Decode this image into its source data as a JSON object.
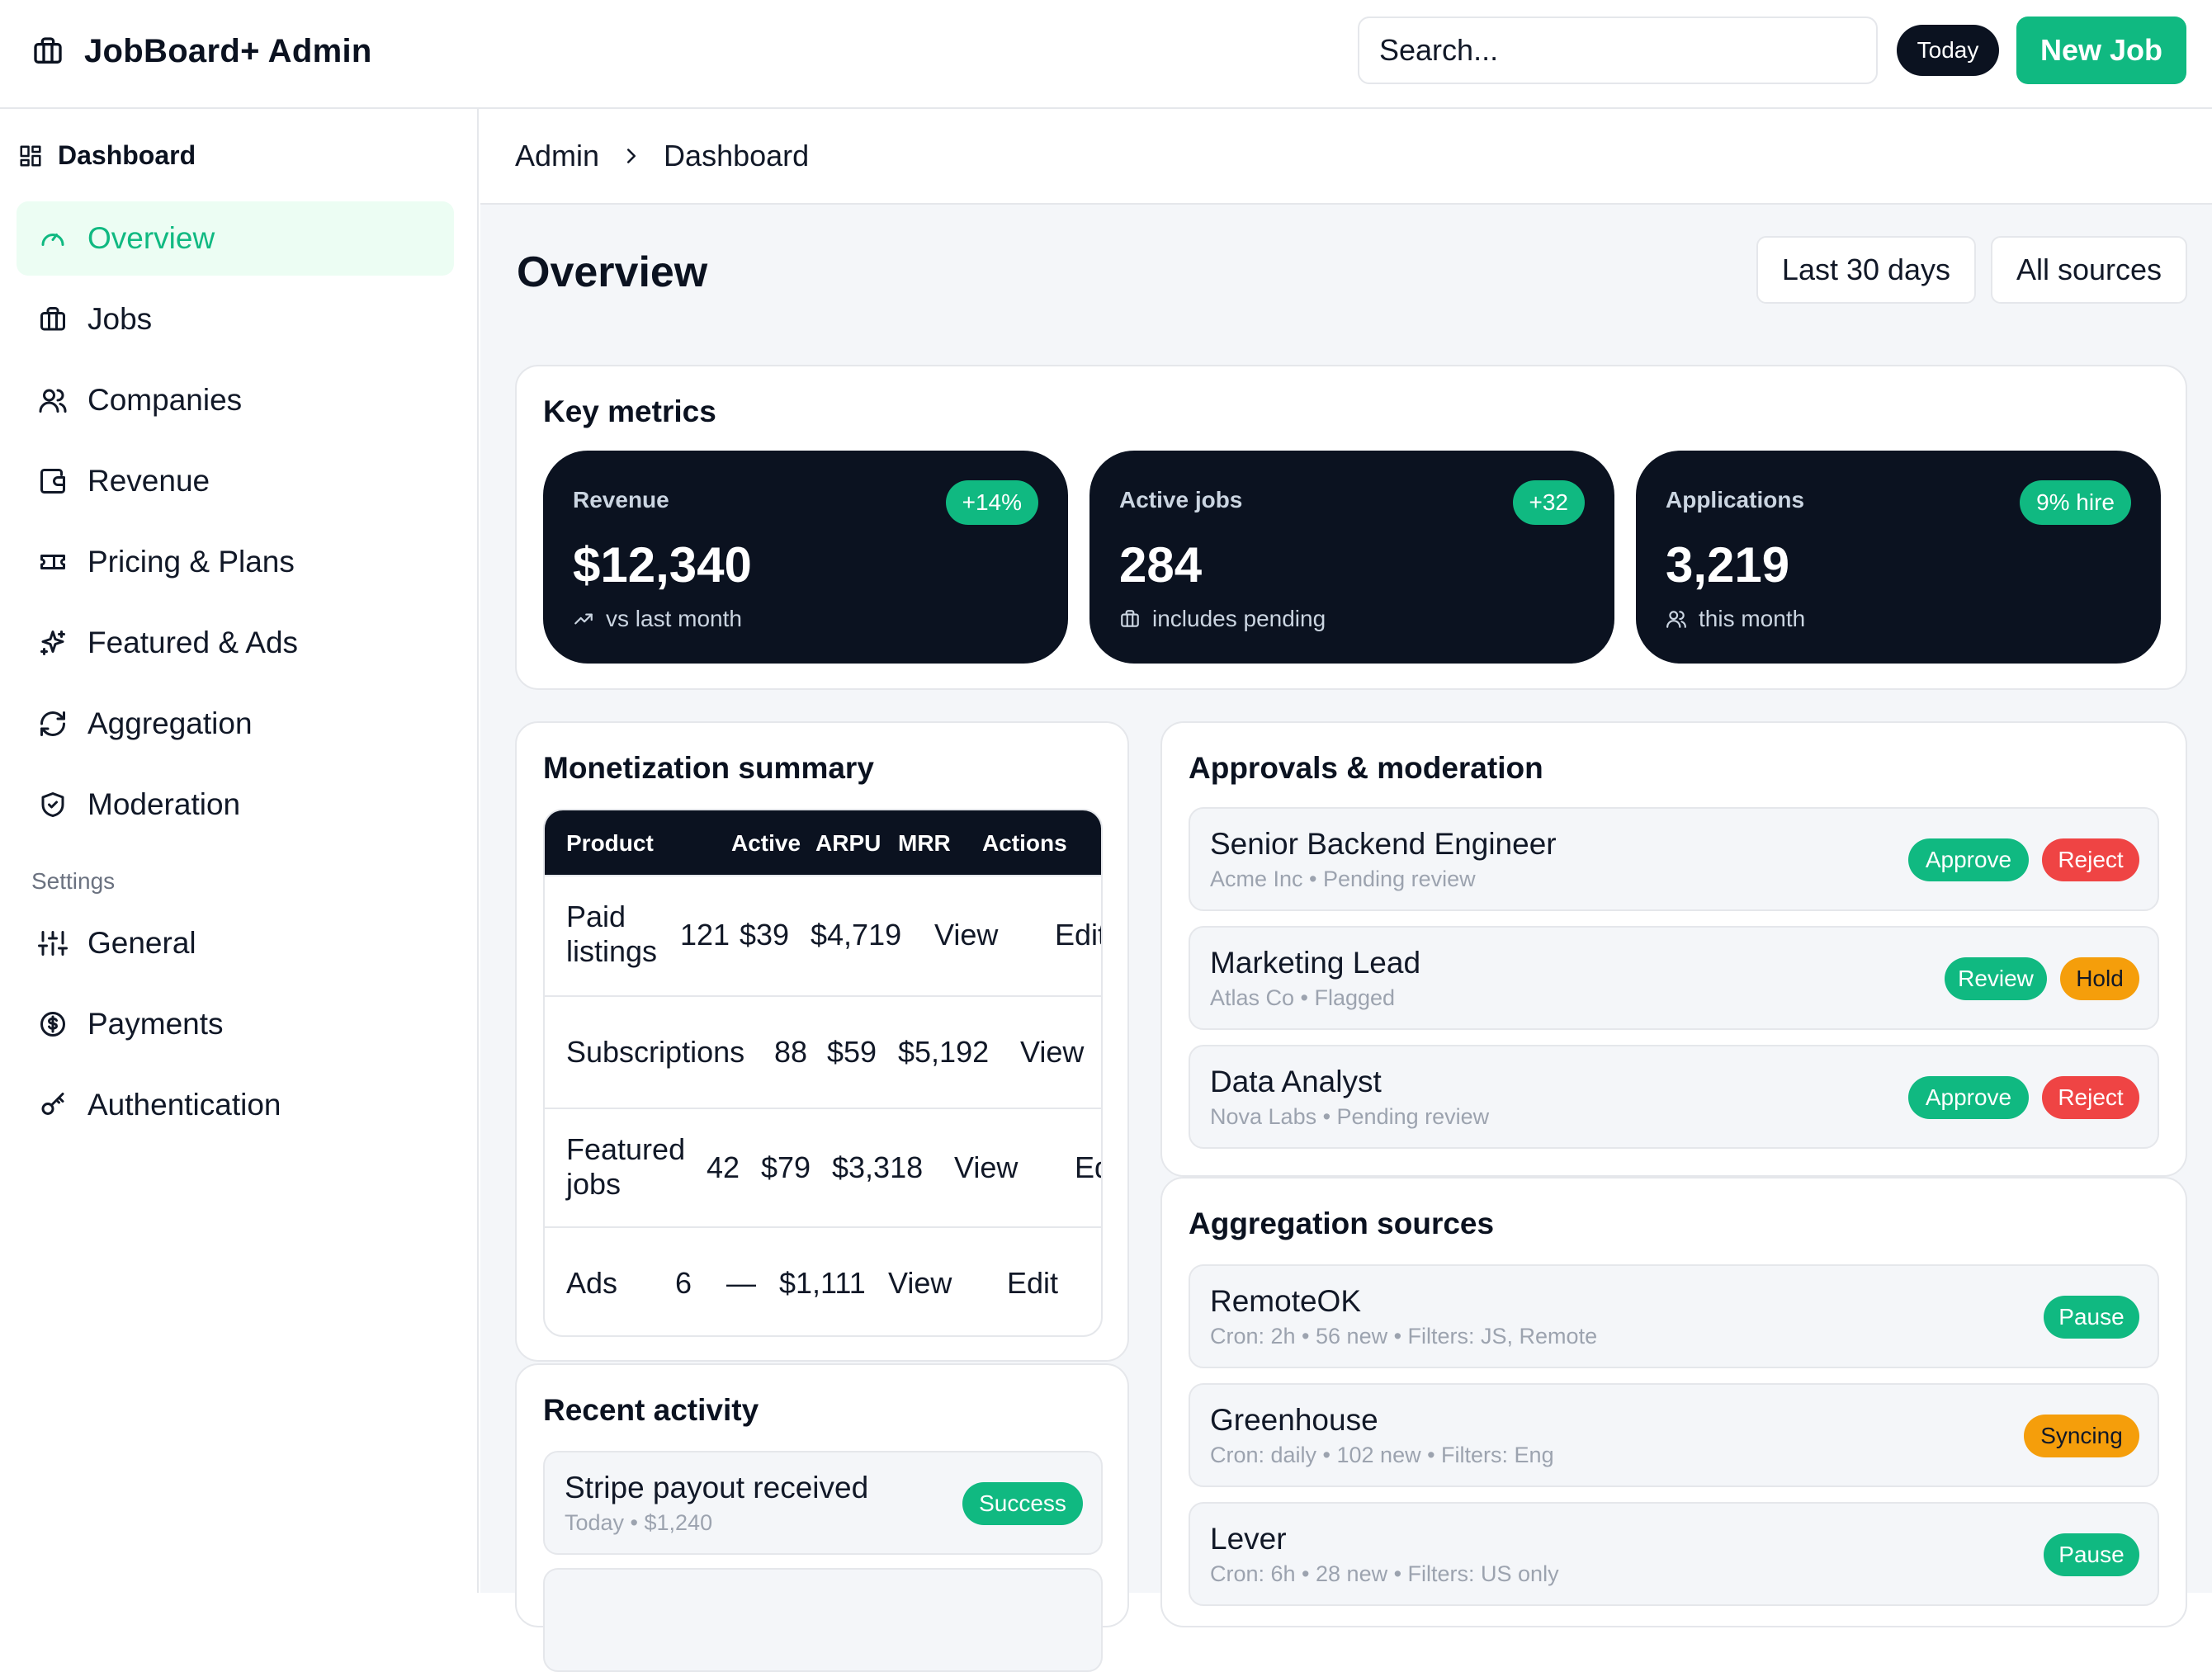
{
  "app": {
    "title": "JobBoard+ Admin"
  },
  "topbar": {
    "search_placeholder": "Search...",
    "today_label": "Today",
    "new_job_label": "New Job"
  },
  "sidebar": {
    "heading": "Dashboard",
    "items": [
      {
        "label": "Overview",
        "icon": "gauge-icon",
        "active": true
      },
      {
        "label": "Jobs",
        "icon": "briefcase-icon"
      },
      {
        "label": "Companies",
        "icon": "users-icon"
      },
      {
        "label": "Revenue",
        "icon": "wallet-icon"
      },
      {
        "label": "Pricing & Plans",
        "icon": "ticket-icon"
      },
      {
        "label": "Featured & Ads",
        "icon": "sparkles-icon"
      },
      {
        "label": "Aggregation",
        "icon": "refresh-icon"
      },
      {
        "label": "Moderation",
        "icon": "shield-icon"
      }
    ],
    "settings_label": "Settings",
    "settings_items": [
      {
        "label": "General",
        "icon": "sliders-icon"
      },
      {
        "label": "Payments",
        "icon": "dollar-circle-icon"
      },
      {
        "label": "Authentication",
        "icon": "key-icon"
      }
    ]
  },
  "breadcrumb": [
    "Admin",
    "Dashboard"
  ],
  "page": {
    "title": "Overview",
    "range_filter": "Last 30 days",
    "source_filter": "All sources"
  },
  "key_metrics": {
    "title": "Key metrics",
    "cards": [
      {
        "label": "Revenue",
        "badge": "+14%",
        "value": "$12,340",
        "sub": "vs last month",
        "icon": "trending-up-icon"
      },
      {
        "label": "Active jobs",
        "badge": "+32",
        "value": "284",
        "sub": "includes pending",
        "icon": "briefcase-icon"
      },
      {
        "label": "Applications",
        "badge": "9% hire",
        "value": "3,219",
        "sub": "this month",
        "icon": "users-icon"
      }
    ]
  },
  "monetization": {
    "title": "Monetization summary",
    "columns": [
      "Product",
      "Active",
      "ARPU",
      "MRR",
      "Actions"
    ],
    "rows": [
      {
        "product_line1": "Paid",
        "product_line2": "listings",
        "active": "121",
        "arpu": "$39",
        "mrr": "$4,719",
        "view": "View",
        "edit": "Edit"
      },
      {
        "product_line1": "Subscriptions",
        "product_line2": "",
        "active": "88",
        "arpu": "$59",
        "mrr": "$5,192",
        "view": "View",
        "edit": ""
      },
      {
        "product_line1": "Featured",
        "product_line2": "jobs",
        "active": "42",
        "arpu": "$79",
        "mrr": "$3,318",
        "view": "View",
        "edit": "Ed"
      },
      {
        "product_line1": "Ads",
        "product_line2": "",
        "active": "6",
        "arpu": "—",
        "mrr": "$1,111",
        "view": "View",
        "edit": "Edit"
      }
    ]
  },
  "recent_activity": {
    "title": "Recent activity",
    "items": [
      {
        "title": "Stripe payout received",
        "meta": "Today • $1,240",
        "status": "Success"
      }
    ]
  },
  "approvals": {
    "title": "Approvals & moderation",
    "items": [
      {
        "title": "Senior Backend Engineer",
        "meta": "Acme Inc • Pending review",
        "actions": [
          "Approve",
          "Reject"
        ]
      },
      {
        "title": "Marketing Lead",
        "meta": "Atlas Co • Flagged",
        "actions": [
          "Review",
          "Hold"
        ]
      },
      {
        "title": "Data Analyst",
        "meta": "Nova Labs • Pending review",
        "actions": [
          "Approve",
          "Reject"
        ]
      }
    ]
  },
  "aggregation": {
    "title": "Aggregation sources",
    "items": [
      {
        "title": "RemoteOK",
        "meta": "Cron: 2h • 56 new • Filters: JS, Remote",
        "status": "Pause"
      },
      {
        "title": "Greenhouse",
        "meta": "Cron: daily • 102 new • Filters: Eng",
        "status": "Syncing"
      },
      {
        "title": "Lever",
        "meta": "Cron: 6h • 28 new • Filters: US only",
        "status": "Pause"
      }
    ]
  },
  "colors": {
    "accent": "#10b981",
    "dark": "#0b1220",
    "danger": "#ef4444",
    "warning": "#f59e0b"
  }
}
